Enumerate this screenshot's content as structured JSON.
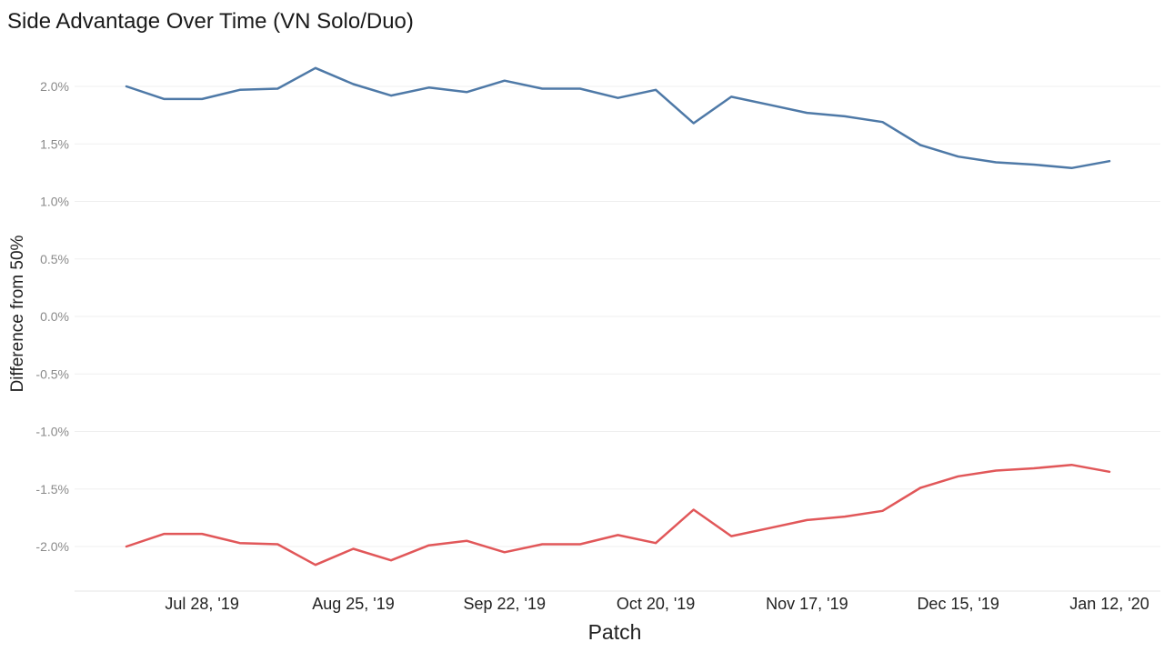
{
  "chart_data": {
    "type": "line",
    "title": "Side Advantage Over Time (VN Solo/Duo)",
    "xlabel": "Patch",
    "ylabel": "Difference from 50%",
    "x": [
      0,
      1,
      2,
      3,
      4,
      5,
      6,
      7,
      8,
      9,
      10,
      11,
      12,
      13,
      14,
      15,
      16,
      17,
      18,
      19,
      20,
      21,
      22,
      23,
      24,
      25,
      26
    ],
    "x_tick_labels": [
      {
        "at": 2,
        "label": "Jul 28, '19"
      },
      {
        "at": 6,
        "label": "Aug 25, '19"
      },
      {
        "at": 10,
        "label": "Sep 22, '19"
      },
      {
        "at": 14,
        "label": "Oct 20, '19"
      },
      {
        "at": 18,
        "label": "Nov 17, '19"
      },
      {
        "at": 22,
        "label": "Dec 15, '19"
      },
      {
        "at": 26,
        "label": "Jan 12, '20"
      }
    ],
    "y_ticks": [
      2.0,
      1.5,
      1.0,
      0.5,
      0.0,
      -0.5,
      -1.0,
      -1.5,
      -2.0
    ],
    "y_tick_labels": [
      "2.0%",
      "1.5%",
      "1.0%",
      "0.5%",
      "0.0%",
      "-0.5%",
      "-1.0%",
      "-1.5%",
      "-2.0%"
    ],
    "ylim": [
      -2.4,
      2.4
    ],
    "grid": true,
    "series": [
      {
        "color": "#4e79a7",
        "values": [
          2.0,
          1.89,
          1.89,
          1.97,
          1.98,
          2.16,
          2.02,
          1.92,
          1.99,
          1.95,
          2.05,
          1.98,
          1.98,
          1.9,
          1.97,
          1.68,
          1.91,
          1.84,
          1.77,
          1.74,
          1.69,
          1.49,
          1.39,
          1.34,
          1.32,
          1.29,
          1.35
        ]
      },
      {
        "color": "#e15759",
        "values": [
          -2.0,
          -1.89,
          -1.89,
          -1.97,
          -1.98,
          -2.16,
          -2.02,
          -2.12,
          -1.99,
          -1.95,
          -2.05,
          -1.98,
          -1.98,
          -1.9,
          -1.97,
          -1.68,
          -1.91,
          -1.84,
          -1.77,
          -1.74,
          -1.69,
          -1.49,
          -1.39,
          -1.34,
          -1.32,
          -1.29,
          -1.35
        ]
      }
    ]
  }
}
